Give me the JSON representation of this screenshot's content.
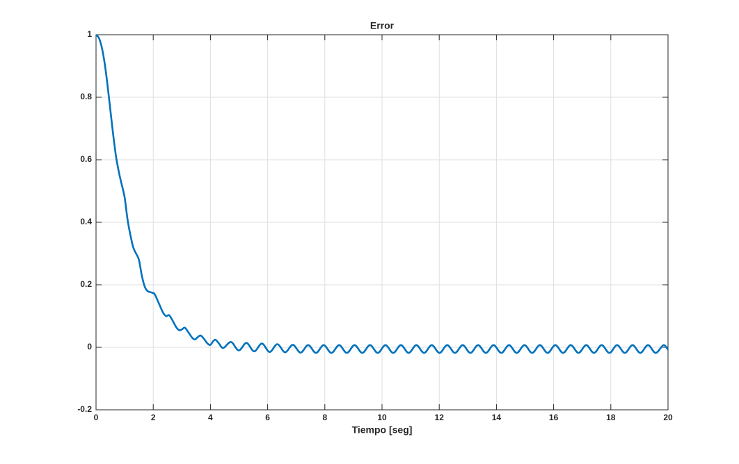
{
  "chart_data": {
    "type": "line",
    "title": "Error",
    "x_label": "Tiempo [seg]",
    "x": [
      0,
      0.1,
      0.2,
      0.3,
      0.4,
      0.5,
      0.6,
      0.7,
      0.8,
      0.9,
      1.0,
      1.1,
      1.2,
      1.3,
      1.4,
      1.5,
      1.6,
      1.7,
      1.8,
      1.95,
      2.05,
      2.2,
      2.35,
      2.45,
      2.55,
      2.65,
      2.8,
      2.9,
      3.0,
      3.1,
      3.2,
      3.35,
      3.45,
      3.55,
      3.65,
      3.75,
      3.9,
      4.0,
      4.1,
      4.18,
      4.3,
      4.45,
      4.72,
      4.99,
      5.26,
      5.53,
      5.8,
      6.07,
      6.34,
      6.61,
      6.88,
      7.15,
      7.42,
      7.69,
      7.96,
      8.23,
      8.5,
      8.77,
      9.04,
      9.31,
      9.58,
      9.85,
      10.12,
      10.39,
      10.66,
      10.93,
      11.2,
      11.47,
      11.74,
      12.01,
      12.28,
      12.55,
      12.82,
      13.09,
      13.36,
      13.63,
      13.9,
      14.17,
      14.44,
      14.71,
      14.98,
      15.25,
      15.52,
      15.79,
      16.06,
      16.33,
      16.6,
      16.87,
      17.14,
      17.41,
      17.68,
      17.95,
      18.22,
      18.49,
      18.76,
      19.03,
      19.3,
      19.57,
      19.84,
      20
    ],
    "values": [
      1,
      0.99,
      0.96,
      0.91,
      0.84,
      0.76,
      0.68,
      0.61,
      0.56,
      0.52,
      0.48,
      0.41,
      0.36,
      0.32,
      0.3,
      0.28,
      0.23,
      0.195,
      0.18,
      0.175,
      0.17,
      0.14,
      0.11,
      0.1,
      0.103,
      0.09,
      0.065,
      0.055,
      0.057,
      0.063,
      0.052,
      0.032,
      0.025,
      0.032,
      0.038,
      0.03,
      0.012,
      0.008,
      0.02,
      0.024,
      0.012,
      -0.002,
      0.017,
      -0.01,
      0.014,
      -0.013,
      0.012,
      -0.015,
      0.01,
      -0.016,
      0.008,
      -0.017,
      0.007,
      -0.018,
      0.007,
      -0.018,
      0.007,
      -0.018,
      0.007,
      -0.018,
      0.007,
      -0.018,
      0.007,
      -0.018,
      0.007,
      -0.018,
      0.007,
      -0.018,
      0.007,
      -0.018,
      0.007,
      -0.018,
      0.007,
      -0.018,
      0.007,
      -0.018,
      0.007,
      -0.018,
      0.007,
      -0.018,
      0.007,
      -0.018,
      0.007,
      -0.018,
      0.007,
      -0.018,
      0.007,
      -0.018,
      0.007,
      -0.018,
      0.007,
      -0.018,
      0.007,
      -0.018,
      0.007,
      -0.018,
      0.007,
      -0.018,
      0.007,
      -0.008
    ],
    "color": "#0072bd",
    "xlim": [
      0,
      20
    ],
    "xticks": [
      0,
      2,
      4,
      6,
      8,
      10,
      12,
      14,
      16,
      18,
      20
    ],
    "ylim": [
      -0.2,
      1
    ],
    "yticks": [
      -0.2,
      0,
      0.2,
      0.4,
      0.6,
      0.8,
      1
    ],
    "grid": true
  }
}
